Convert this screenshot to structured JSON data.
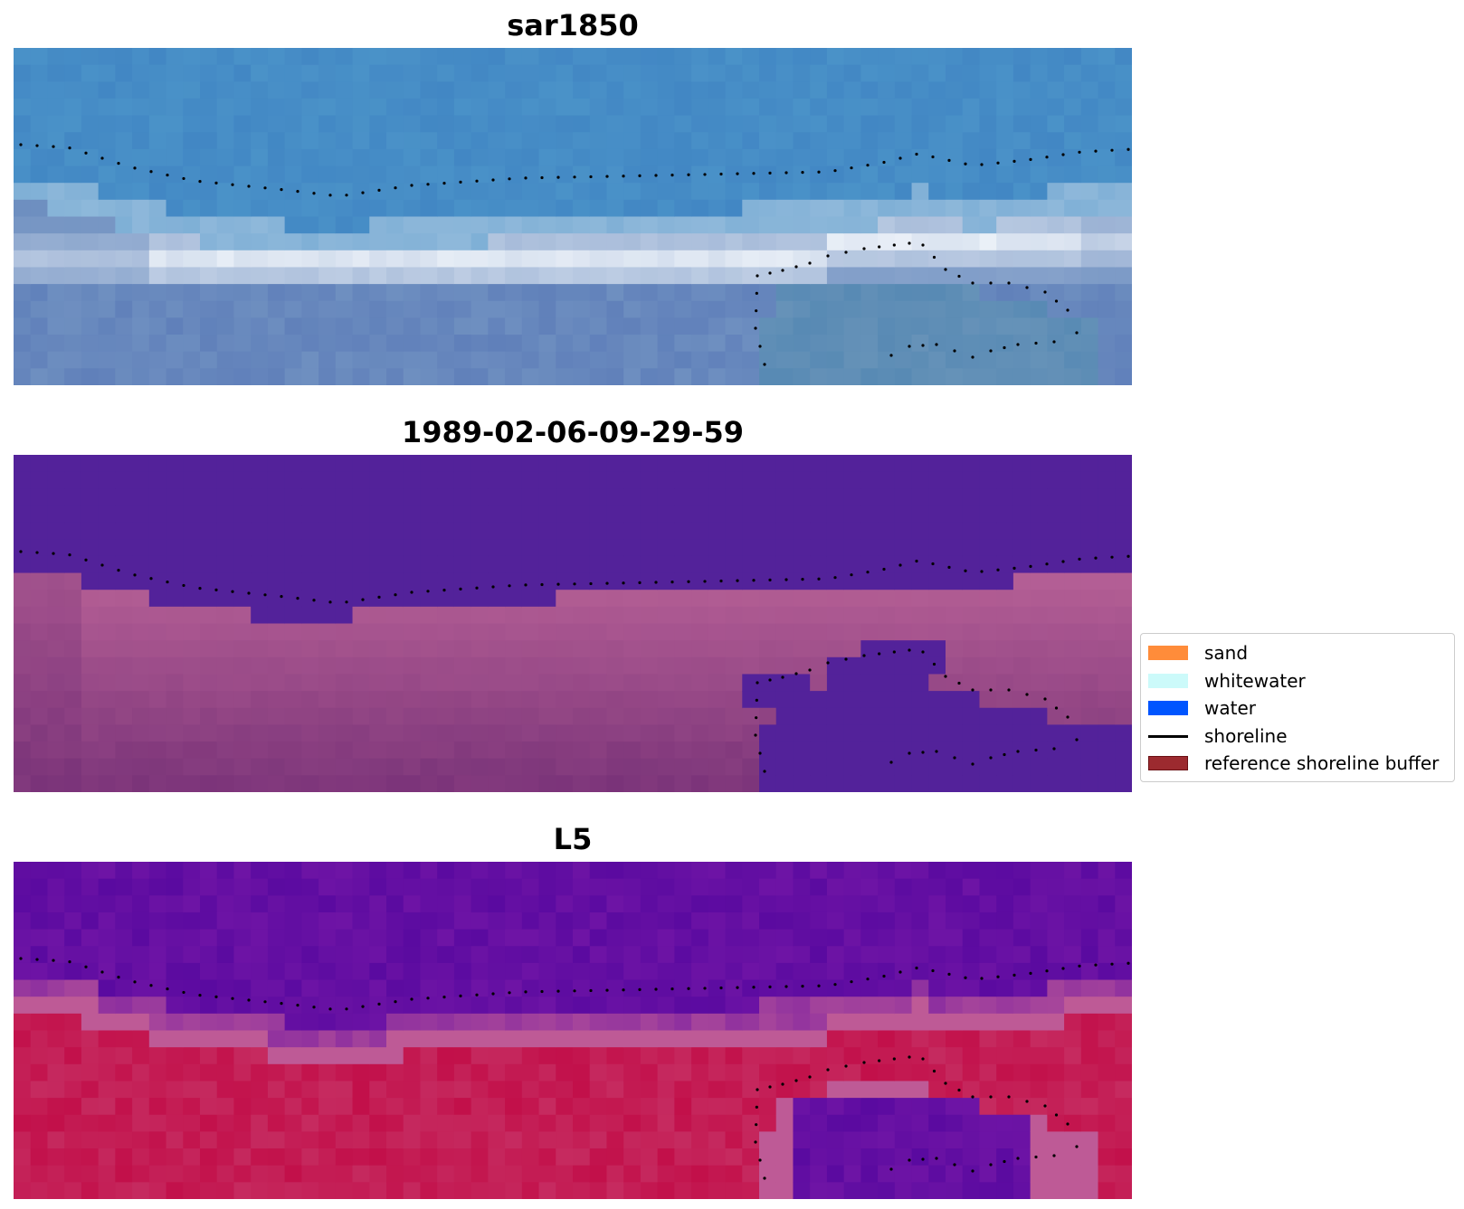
{
  "panels": [
    {
      "title": "sar1850",
      "kind": "rgb"
    },
    {
      "title": "1989-02-06-09-29-59",
      "kind": "classified"
    },
    {
      "title": "L5",
      "kind": "mndwi"
    }
  ],
  "legend": {
    "items": [
      {
        "label": "sand",
        "type": "patch",
        "color": "#ff8c3a",
        "border": "#ff8c3a"
      },
      {
        "label": "whitewater",
        "type": "patch",
        "color": "#ccfafa",
        "border": "#ccfafa"
      },
      {
        "label": "water",
        "type": "patch",
        "color": "#0055ff",
        "border": "#0055ff"
      },
      {
        "label": "shoreline",
        "type": "line",
        "color": "#000000"
      },
      {
        "label": "reference shoreline buffer",
        "type": "patch",
        "color": "#9c2a2f",
        "border": "#6b1014"
      }
    ]
  },
  "colors": {
    "shoreline_dots": "#000000",
    "rgb_water": "#4a92c8",
    "rgb_surf": "#f2f6fb",
    "rgb_beach": "#6e8fc0",
    "class_water": "#53229a",
    "class_sand": "#a54a8a",
    "mndwi_water": "#5a0aa0",
    "mndwi_land": "#c2104a"
  }
}
